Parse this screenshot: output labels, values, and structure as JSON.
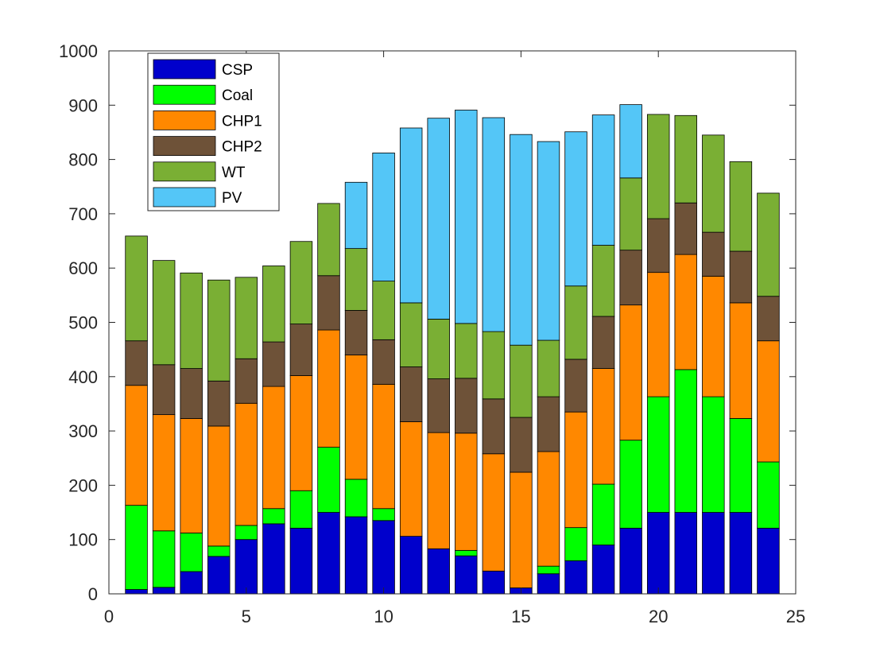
{
  "chart_data": {
    "type": "bar",
    "stacked": true,
    "title": "",
    "xlabel": "",
    "ylabel": "",
    "xlim": [
      0,
      25
    ],
    "ylim": [
      0,
      1000
    ],
    "xticks": [
      0,
      5,
      10,
      15,
      20,
      25
    ],
    "yticks": [
      0,
      100,
      200,
      300,
      400,
      500,
      600,
      700,
      800,
      900,
      1000
    ],
    "grid": false,
    "legend_position": "top-left",
    "x": [
      1,
      2,
      3,
      4,
      5,
      6,
      7,
      8,
      9,
      10,
      11,
      12,
      13,
      14,
      15,
      16,
      17,
      18,
      19,
      20,
      21,
      22,
      23,
      24
    ],
    "series": [
      {
        "name": "CSP",
        "color": "#0000cc",
        "values": [
          8,
          12,
          41,
          69,
          100,
          129,
          121,
          150,
          142,
          135,
          106,
          83,
          70,
          42,
          11,
          37,
          61,
          90,
          121,
          150,
          150,
          150,
          150,
          121
        ]
      },
      {
        "name": "Coal",
        "color": "#00ff00",
        "values": [
          155,
          104,
          71,
          19,
          26,
          28,
          69,
          120,
          69,
          22,
          0,
          0,
          10,
          0,
          0,
          14,
          61,
          112,
          162,
          213,
          263,
          213,
          173,
          122
        ]
      },
      {
        "name": "CHP1",
        "color": "#ff8800",
        "values": [
          221,
          214,
          211,
          221,
          225,
          225,
          212,
          216,
          229,
          229,
          211,
          214,
          216,
          216,
          213,
          211,
          213,
          213,
          249,
          229,
          212,
          222,
          213,
          223
        ]
      },
      {
        "name": "CHP2",
        "color": "#6e5238",
        "values": [
          82,
          92,
          92,
          83,
          82,
          82,
          95,
          100,
          82,
          82,
          101,
          99,
          101,
          101,
          101,
          101,
          97,
          96,
          101,
          99,
          95,
          81,
          95,
          82
        ]
      },
      {
        "name": "WT",
        "color": "#7aaf34",
        "values": [
          193,
          192,
          176,
          186,
          150,
          140,
          152,
          133,
          114,
          108,
          118,
          110,
          101,
          124,
          133,
          104,
          135,
          131,
          133,
          192,
          161,
          179,
          165,
          190
        ]
      },
      {
        "name": "PV",
        "color": "#54c6f7",
        "values": [
          0,
          0,
          0,
          0,
          0,
          0,
          0,
          0,
          122,
          236,
          322,
          370,
          393,
          394,
          388,
          366,
          284,
          240,
          135,
          0,
          0,
          0,
          0,
          0
        ]
      }
    ]
  }
}
